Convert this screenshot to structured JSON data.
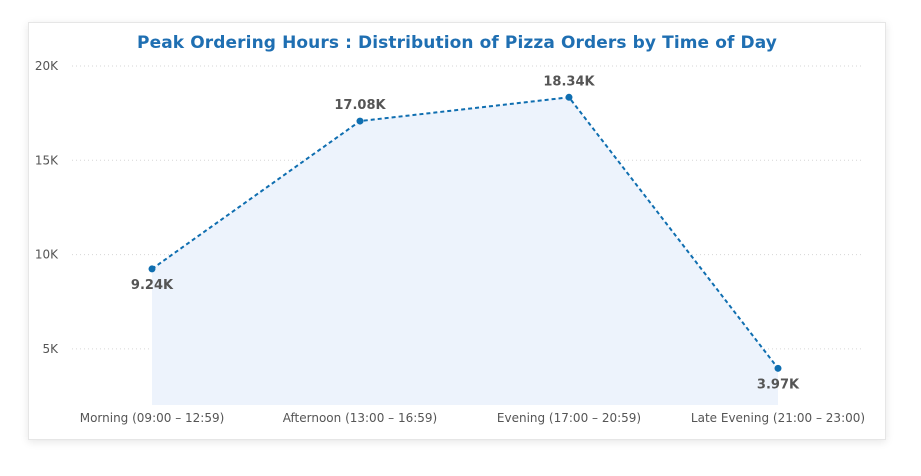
{
  "chart_data": {
    "type": "line",
    "title": "Peak Ordering Hours : Distribution of Pizza Orders by Time of Day",
    "categories": [
      "Morning (09:00 – 12:59)",
      "Afternoon (13:00 – 16:59)",
      "Evening (17:00 – 20:59)",
      "Late Evening (21:00 – 23:00)"
    ],
    "values": [
      9240,
      17080,
      18340,
      3970
    ],
    "data_labels": [
      "9.24K",
      "17.08K",
      "18.34K",
      "3.97K"
    ],
    "y_ticks": [
      5000,
      10000,
      15000,
      20000
    ],
    "y_tick_labels": [
      "5K",
      "10K",
      "15K",
      "20K"
    ],
    "ylim": [
      0,
      20000
    ],
    "grid": true,
    "line_style": "dashed",
    "area_fill": true,
    "colors": {
      "line": "#0f6eb0",
      "area": "#edf3fc",
      "title": "#1f6fb2",
      "grid": "#d6d6d6"
    }
  }
}
